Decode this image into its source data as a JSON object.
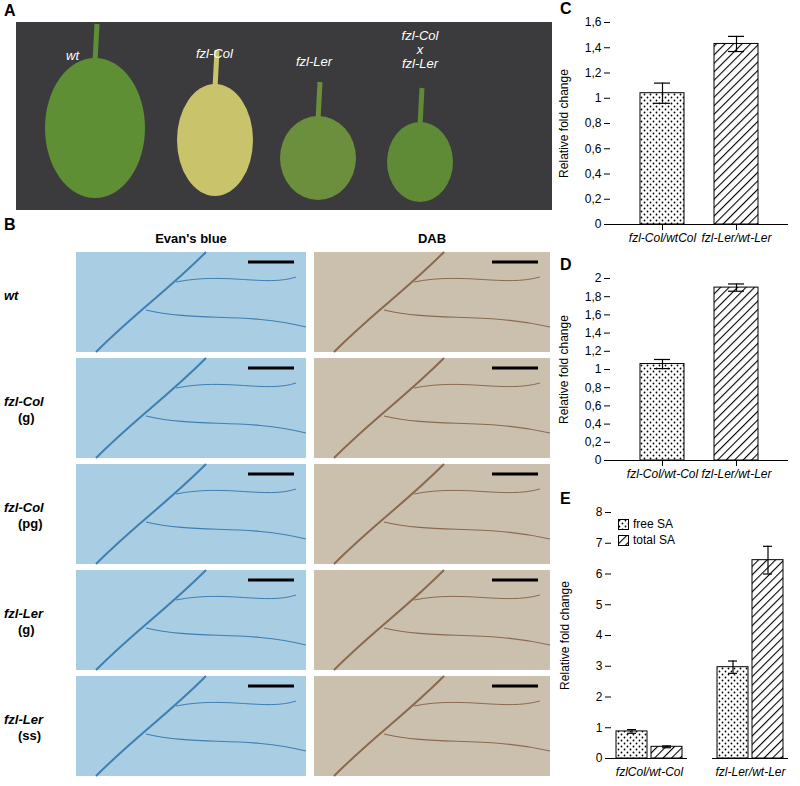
{
  "chart_data": [
    {
      "type": "bar",
      "title": "C",
      "y_label": "Relative fold change",
      "categories": [
        "fzl-Col/wtCol",
        "fzl-Ler/wt-Ler"
      ],
      "values": [
        1.04,
        1.43
      ],
      "errors": [
        0.08,
        0.06
      ],
      "ylim": [
        0,
        1.6
      ],
      "yticks": [
        0,
        {
          "value": 0.2,
          "label": "0,2"
        },
        {
          "value": 0.4,
          "label": "0,4"
        },
        {
          "value": 0.6,
          "label": "0,6"
        },
        {
          "value": 0.8,
          "label": "0,8"
        },
        1,
        {
          "value": 1.2,
          "label": "1,2"
        },
        {
          "value": 1.4,
          "label": "1,4"
        },
        {
          "value": 1.6,
          "label": "1,6"
        }
      ],
      "grid": false
    },
    {
      "type": "bar",
      "title": "D",
      "y_label": "Relative fold change",
      "categories": [
        "fzl-Col/wt-Col",
        "fzl-Ler/wt-Ler"
      ],
      "values": [
        1.06,
        1.9
      ],
      "errors": [
        0.05,
        0.04
      ],
      "ylim": [
        0,
        2
      ],
      "yticks": [
        0,
        {
          "value": 0.2,
          "label": "0,2"
        },
        {
          "value": 0.4,
          "label": "0,4"
        },
        {
          "value": 0.6,
          "label": "0,6"
        },
        {
          "value": 0.8,
          "label": "0,8"
        },
        1,
        {
          "value": 1.2,
          "label": "1,2"
        },
        {
          "value": 1.4,
          "label": "1,4"
        },
        {
          "value": 1.6,
          "label": "1,6"
        },
        {
          "value": 1.8,
          "label": "1,8"
        },
        2
      ],
      "grid": false
    },
    {
      "type": "bar",
      "title": "E",
      "y_label": "Relative fold change",
      "categories": [
        "fzlCol/wt-Col",
        "fzl-Ler/wt-Ler"
      ],
      "series": [
        {
          "name": "free SA",
          "values": [
            0.88,
            2.97
          ],
          "errors": [
            0.06,
            0.2
          ]
        },
        {
          "name": "total SA",
          "values": [
            0.38,
            6.45
          ],
          "errors": [
            0.03,
            0.45
          ]
        }
      ],
      "ylim": [
        0,
        8
      ],
      "yticks": [
        0,
        1,
        2,
        3,
        4,
        5,
        6,
        7,
        8
      ],
      "legend": "top-left",
      "grid": false
    }
  ],
  "image_panels": {
    "A": {
      "label": "A",
      "leaves": [
        "wt",
        "fzl-Col",
        "fzl-Ler",
        "fzl-Col x fzl-Ler"
      ]
    },
    "B": {
      "label": "B",
      "columns": [
        "Evan's blue",
        "DAB"
      ],
      "rows": [
        "wt",
        "fzl-Col (g)",
        "fzl-Col (pg)",
        "fzl-Ler (g)",
        "fzl-Ler (ss)"
      ]
    }
  }
}
